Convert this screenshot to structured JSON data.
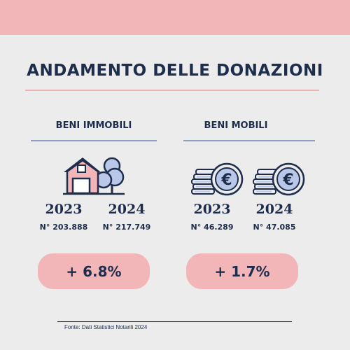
{
  "title": "ANDAMENTO DELLE DONAZIONI",
  "sections": {
    "immobili": {
      "label": "BENI IMMOBILI",
      "icon": "house-tree-icon",
      "years": [
        "2023",
        "2024"
      ],
      "counts": [
        "N° 203.888",
        "N° 217.749"
      ],
      "change": "+ 6.8%"
    },
    "mobili": {
      "label": "BENI MOBILI",
      "icon": "euro-coins-icon",
      "years": [
        "2023",
        "2024"
      ],
      "counts": [
        "N° 46.289",
        "N° 47.085"
      ],
      "change": "+ 1.7%"
    }
  },
  "source": "Fonte: Dati Statistici Notarili 2024",
  "colors": {
    "accent": "#f2b6b8",
    "text": "#1f2d4d",
    "background": "#ebeceb",
    "icon_blue": "#b9c8e8"
  },
  "chart_data": {
    "type": "table",
    "title": "ANDAMENTO DELLE DONAZIONI",
    "categories": [
      "BENI IMMOBILI",
      "BENI MOBILI"
    ],
    "x": [
      "2023",
      "2024"
    ],
    "series": [
      {
        "name": "BENI IMMOBILI",
        "values": [
          203888,
          217749
        ],
        "change": "+ 6.8%"
      },
      {
        "name": "BENI MOBILI",
        "values": [
          46289,
          47085
        ],
        "change": "+ 1.7%"
      }
    ]
  }
}
